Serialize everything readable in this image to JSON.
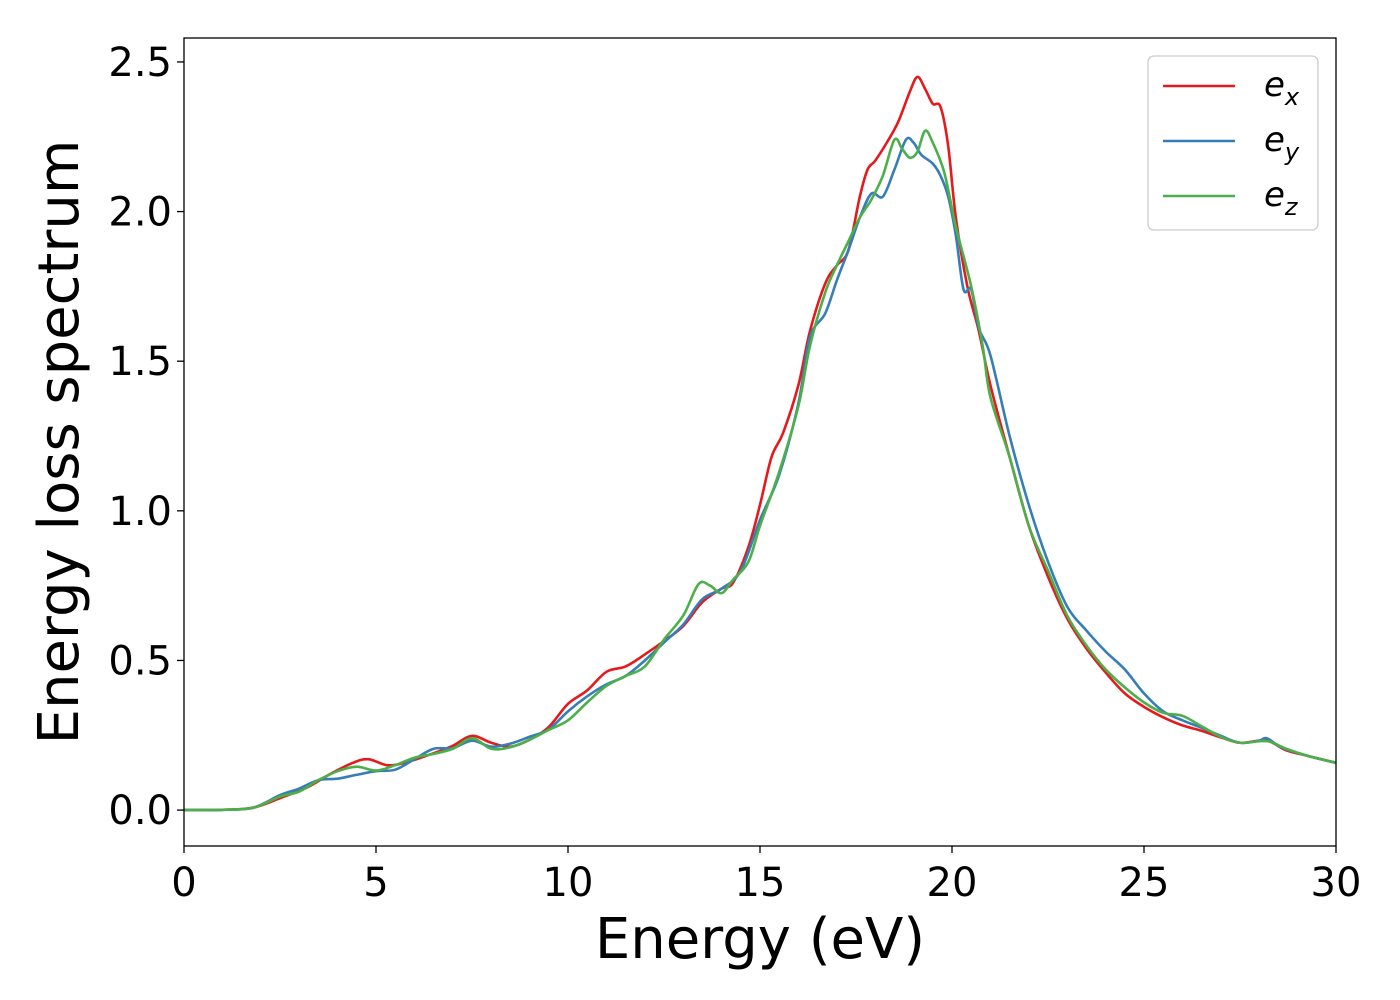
{
  "chart_data": {
    "type": "line",
    "title": "",
    "xlabel": "Energy (eV)",
    "ylabel": "Energy loss spectrum",
    "xlim": [
      0,
      30
    ],
    "ylim": [
      -0.12,
      2.58
    ],
    "x_ticks": [
      0,
      5,
      10,
      15,
      20,
      25,
      30
    ],
    "x_tick_labels": [
      "0",
      "5",
      "10",
      "15",
      "20",
      "25",
      "30"
    ],
    "y_ticks": [
      0.0,
      0.5,
      1.0,
      1.5,
      2.0,
      2.5
    ],
    "y_tick_labels": [
      "0.0",
      "0.5",
      "1.0",
      "1.5",
      "2.0",
      "2.5"
    ],
    "grid": false,
    "legend_position": "top-right",
    "series": [
      {
        "name": "e",
        "subscript": "x",
        "color": "#e41a1c",
        "points": [
          [
            0,
            0
          ],
          [
            1,
            0.001
          ],
          [
            1.8,
            0.008
          ],
          [
            2.5,
            0.04
          ],
          [
            3.2,
            0.075
          ],
          [
            3.8,
            0.12
          ],
          [
            4.4,
            0.158
          ],
          [
            4.8,
            0.17
          ],
          [
            5.3,
            0.15
          ],
          [
            5.8,
            0.16
          ],
          [
            6.5,
            0.19
          ],
          [
            7,
            0.215
          ],
          [
            7.5,
            0.248
          ],
          [
            8,
            0.225
          ],
          [
            8.5,
            0.212
          ],
          [
            9,
            0.235
          ],
          [
            9.5,
            0.278
          ],
          [
            10,
            0.355
          ],
          [
            10.5,
            0.4
          ],
          [
            11,
            0.462
          ],
          [
            11.5,
            0.48
          ],
          [
            12,
            0.52
          ],
          [
            12.5,
            0.565
          ],
          [
            13,
            0.615
          ],
          [
            13.5,
            0.695
          ],
          [
            14,
            0.74
          ],
          [
            14.3,
            0.76
          ],
          [
            14.7,
            0.88
          ],
          [
            15,
            1.02
          ],
          [
            15.3,
            1.18
          ],
          [
            15.6,
            1.26
          ],
          [
            16,
            1.42
          ],
          [
            16.3,
            1.6
          ],
          [
            16.7,
            1.76
          ],
          [
            17,
            1.82
          ],
          [
            17.3,
            1.87
          ],
          [
            17.6,
            2.05
          ],
          [
            17.8,
            2.14
          ],
          [
            18,
            2.17
          ],
          [
            18.3,
            2.23
          ],
          [
            18.6,
            2.3
          ],
          [
            18.9,
            2.4
          ],
          [
            19.1,
            2.45
          ],
          [
            19.3,
            2.41
          ],
          [
            19.5,
            2.36
          ],
          [
            19.7,
            2.35
          ],
          [
            19.9,
            2.22
          ],
          [
            20.1,
            1.98
          ],
          [
            20.4,
            1.75
          ],
          [
            20.7,
            1.6
          ],
          [
            21,
            1.42
          ],
          [
            21.5,
            1.18
          ],
          [
            22,
            0.95
          ],
          [
            22.5,
            0.78
          ],
          [
            23,
            0.64
          ],
          [
            23.5,
            0.54
          ],
          [
            24,
            0.46
          ],
          [
            24.5,
            0.39
          ],
          [
            25,
            0.345
          ],
          [
            25.5,
            0.31
          ],
          [
            26,
            0.283
          ],
          [
            26.5,
            0.265
          ],
          [
            27,
            0.243
          ],
          [
            27.5,
            0.225
          ],
          [
            28,
            0.232
          ],
          [
            28.3,
            0.228
          ],
          [
            28.7,
            0.2
          ],
          [
            29.3,
            0.18
          ],
          [
            30,
            0.158
          ]
        ]
      },
      {
        "name": "e",
        "subscript": "y",
        "color": "#377eb8",
        "points": [
          [
            0,
            0
          ],
          [
            1,
            0.001
          ],
          [
            1.8,
            0.008
          ],
          [
            2.5,
            0.05
          ],
          [
            3,
            0.072
          ],
          [
            3.5,
            0.1
          ],
          [
            4,
            0.105
          ],
          [
            4.5,
            0.118
          ],
          [
            5,
            0.13
          ],
          [
            5.5,
            0.135
          ],
          [
            6,
            0.17
          ],
          [
            6.5,
            0.205
          ],
          [
            7,
            0.207
          ],
          [
            7.5,
            0.232
          ],
          [
            8,
            0.212
          ],
          [
            8.5,
            0.222
          ],
          [
            9,
            0.245
          ],
          [
            9.5,
            0.27
          ],
          [
            10,
            0.33
          ],
          [
            10.5,
            0.38
          ],
          [
            11,
            0.42
          ],
          [
            11.5,
            0.448
          ],
          [
            12,
            0.5
          ],
          [
            12.5,
            0.56
          ],
          [
            13,
            0.62
          ],
          [
            13.5,
            0.705
          ],
          [
            14,
            0.74
          ],
          [
            14.5,
            0.8
          ],
          [
            15,
            0.97
          ],
          [
            15.5,
            1.12
          ],
          [
            16,
            1.36
          ],
          [
            16.3,
            1.58
          ],
          [
            16.7,
            1.66
          ],
          [
            17,
            1.77
          ],
          [
            17.3,
            1.87
          ],
          [
            17.6,
            1.98
          ],
          [
            17.9,
            2.06
          ],
          [
            18.2,
            2.05
          ],
          [
            18.5,
            2.14
          ],
          [
            18.8,
            2.24
          ],
          [
            19,
            2.23
          ],
          [
            19.2,
            2.19
          ],
          [
            19.5,
            2.16
          ],
          [
            19.7,
            2.12
          ],
          [
            19.9,
            2.05
          ],
          [
            20.1,
            1.92
          ],
          [
            20.3,
            1.74
          ],
          [
            20.5,
            1.74
          ],
          [
            20.7,
            1.61
          ],
          [
            21,
            1.52
          ],
          [
            21.5,
            1.25
          ],
          [
            22,
            1.02
          ],
          [
            22.5,
            0.83
          ],
          [
            23,
            0.68
          ],
          [
            23.5,
            0.6
          ],
          [
            24,
            0.53
          ],
          [
            24.5,
            0.47
          ],
          [
            25,
            0.39
          ],
          [
            25.5,
            0.33
          ],
          [
            26,
            0.3
          ],
          [
            26.5,
            0.275
          ],
          [
            27,
            0.248
          ],
          [
            27.5,
            0.225
          ],
          [
            28,
            0.232
          ],
          [
            28.2,
            0.24
          ],
          [
            28.6,
            0.208
          ],
          [
            29.3,
            0.18
          ],
          [
            30,
            0.158
          ]
        ]
      },
      {
        "name": "e",
        "subscript": "z",
        "color": "#4daf4a",
        "points": [
          [
            0,
            0
          ],
          [
            1,
            0.001
          ],
          [
            1.8,
            0.008
          ],
          [
            2.5,
            0.045
          ],
          [
            3,
            0.062
          ],
          [
            3.5,
            0.1
          ],
          [
            4,
            0.13
          ],
          [
            4.5,
            0.145
          ],
          [
            5,
            0.132
          ],
          [
            5.5,
            0.15
          ],
          [
            6,
            0.175
          ],
          [
            6.5,
            0.188
          ],
          [
            7,
            0.205
          ],
          [
            7.5,
            0.24
          ],
          [
            8,
            0.205
          ],
          [
            8.5,
            0.21
          ],
          [
            9,
            0.235
          ],
          [
            9.5,
            0.268
          ],
          [
            10,
            0.3
          ],
          [
            10.5,
            0.36
          ],
          [
            11,
            0.415
          ],
          [
            11.5,
            0.448
          ],
          [
            12,
            0.48
          ],
          [
            12.5,
            0.57
          ],
          [
            13,
            0.65
          ],
          [
            13.4,
            0.755
          ],
          [
            13.7,
            0.75
          ],
          [
            14,
            0.725
          ],
          [
            14.3,
            0.77
          ],
          [
            14.7,
            0.83
          ],
          [
            15,
            0.95
          ],
          [
            15.5,
            1.13
          ],
          [
            16,
            1.35
          ],
          [
            16.3,
            1.55
          ],
          [
            16.7,
            1.73
          ],
          [
            17,
            1.82
          ],
          [
            17.3,
            1.9
          ],
          [
            17.6,
            1.98
          ],
          [
            17.9,
            2.04
          ],
          [
            18.2,
            2.12
          ],
          [
            18.5,
            2.24
          ],
          [
            18.7,
            2.21
          ],
          [
            18.9,
            2.18
          ],
          [
            19.1,
            2.2
          ],
          [
            19.3,
            2.27
          ],
          [
            19.5,
            2.23
          ],
          [
            19.8,
            2.13
          ],
          [
            20.1,
            1.95
          ],
          [
            20.5,
            1.75
          ],
          [
            20.8,
            1.55
          ],
          [
            21,
            1.38
          ],
          [
            21.5,
            1.18
          ],
          [
            22,
            0.95
          ],
          [
            22.5,
            0.8
          ],
          [
            23,
            0.65
          ],
          [
            23.5,
            0.55
          ],
          [
            24,
            0.47
          ],
          [
            24.5,
            0.41
          ],
          [
            25,
            0.36
          ],
          [
            25.5,
            0.325
          ],
          [
            26,
            0.315
          ],
          [
            26.5,
            0.28
          ],
          [
            27,
            0.245
          ],
          [
            27.5,
            0.225
          ],
          [
            28,
            0.23
          ],
          [
            28.3,
            0.228
          ],
          [
            28.7,
            0.205
          ],
          [
            29.3,
            0.18
          ],
          [
            30,
            0.158
          ]
        ]
      }
    ]
  }
}
